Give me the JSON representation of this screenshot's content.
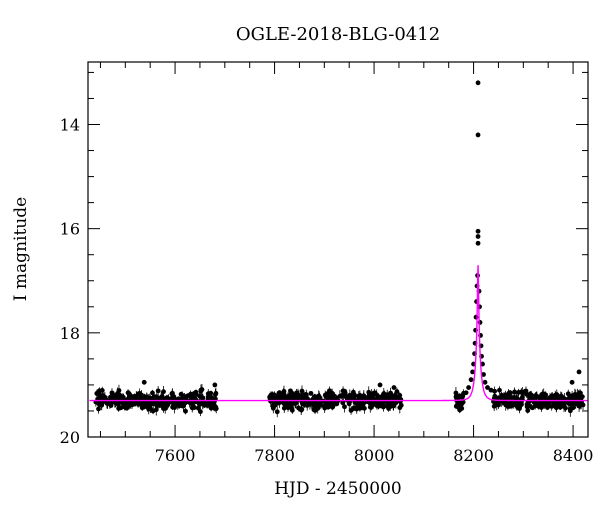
{
  "chart_data": {
    "type": "scatter",
    "title": "OGLE-2018-BLG-0412",
    "xlabel": "HJD - 2450000",
    "ylabel": "I magnitude",
    "xlim": [
      7425,
      8430
    ],
    "ylim": [
      20,
      12.8
    ],
    "y_inverted": true,
    "x_ticks": [
      7600,
      7800,
      8000,
      8200,
      8400
    ],
    "y_ticks": [
      14,
      16,
      18,
      20
    ],
    "x_minor_step": 50,
    "y_minor_step": 0.5,
    "grid": false,
    "colors": {
      "points": "#000000",
      "model": "#ff00ff",
      "axes": "#000000"
    },
    "observing_seasons": [
      {
        "start": 7440,
        "end": 7685,
        "baseline": 19.3
      },
      {
        "start": 7790,
        "end": 8055,
        "baseline": 19.3
      },
      {
        "start": 8160,
        "end": 8420,
        "baseline": 19.3
      }
    ],
    "event_points": [
      {
        "x": 8209,
        "y": 13.2
      },
      {
        "x": 8209,
        "y": 14.2
      },
      {
        "x": 8209,
        "y": 16.05
      },
      {
        "x": 8209,
        "y": 16.15
      },
      {
        "x": 8209,
        "y": 16.28
      },
      {
        "x": 8208,
        "y": 16.9
      },
      {
        "x": 8207,
        "y": 17.1
      },
      {
        "x": 8206,
        "y": 17.4
      },
      {
        "x": 8211,
        "y": 17.2
      },
      {
        "x": 8212,
        "y": 17.5
      },
      {
        "x": 8205,
        "y": 17.7
      },
      {
        "x": 8213,
        "y": 17.8
      },
      {
        "x": 8204,
        "y": 17.95
      },
      {
        "x": 8214,
        "y": 18.05
      },
      {
        "x": 8203,
        "y": 18.2
      },
      {
        "x": 8215,
        "y": 18.25
      },
      {
        "x": 8202,
        "y": 18.4
      },
      {
        "x": 8216,
        "y": 18.45
      },
      {
        "x": 8200,
        "y": 18.6
      },
      {
        "x": 8218,
        "y": 18.6
      },
      {
        "x": 8198,
        "y": 18.75
      },
      {
        "x": 8220,
        "y": 18.8
      },
      {
        "x": 8195,
        "y": 18.9
      },
      {
        "x": 8223,
        "y": 18.95
      },
      {
        "x": 8190,
        "y": 19.05
      },
      {
        "x": 8228,
        "y": 19.05
      },
      {
        "x": 8185,
        "y": 19.15
      },
      {
        "x": 8235,
        "y": 19.1
      },
      {
        "x": 8398,
        "y": 18.95
      },
      {
        "x": 8412,
        "y": 18.75
      },
      {
        "x": 8012,
        "y": 19.0
      },
      {
        "x": 8040,
        "y": 19.05
      },
      {
        "x": 7538,
        "y": 18.95
      },
      {
        "x": 7680,
        "y": 19.0
      }
    ],
    "model": {
      "type": "point-lens",
      "baseline": 19.3,
      "t0": 8209,
      "peak": 16.7,
      "tE": 9,
      "label": ""
    }
  }
}
